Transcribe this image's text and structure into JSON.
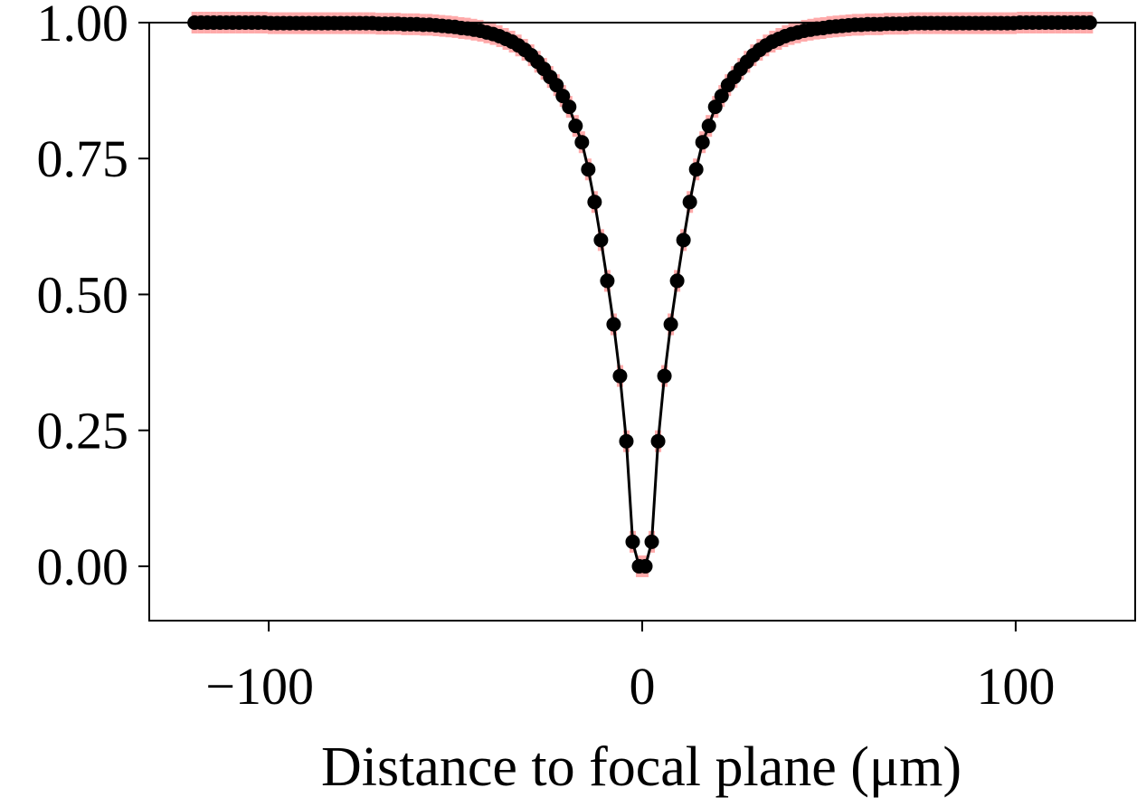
{
  "chart_data": {
    "type": "line",
    "x_label": "Distance to focal plane (μm)",
    "xlim": [
      -132,
      132
    ],
    "ylim": [
      -0.1,
      1.0
    ],
    "xticks": [
      {
        "value": -100,
        "label": "−100"
      },
      0,
      100
    ],
    "yticks": [
      {
        "value": 0,
        "label": "0.00"
      },
      {
        "value": 0.25,
        "label": "0.25"
      },
      {
        "value": 0.5,
        "label": "0.50"
      },
      {
        "value": 0.75,
        "label": "0.75"
      },
      {
        "value": 1,
        "label": "1.00"
      }
    ],
    "x": [
      -119.85,
      -118.15,
      -116.45,
      -114.75,
      -113.05,
      -111.35,
      -109.65,
      -107.95,
      -106.25,
      -104.55,
      -102.85,
      -101.15,
      -99.45,
      -97.75,
      -96.05,
      -94.35,
      -92.65,
      -90.95,
      -89.25,
      -87.55,
      -85.85,
      -84.15,
      -82.45,
      -80.75,
      -79.05,
      -77.35,
      -75.65,
      -73.95,
      -72.25,
      -70.55,
      -68.85,
      -67.15,
      -65.45,
      -63.75,
      -62.05,
      -60.35,
      -58.65,
      -56.95,
      -55.25,
      -53.55,
      -51.85,
      -50.15,
      -48.45,
      -46.75,
      -45.05,
      -43.35,
      -41.65,
      -39.95,
      -38.25,
      -36.55,
      -34.85,
      -33.15,
      -31.45,
      -29.75,
      -28.05,
      -26.35,
      -24.65,
      -22.95,
      -21.25,
      -19.55,
      -17.85,
      -16.15,
      -14.45,
      -12.75,
      -11.05,
      -9.35,
      -7.65,
      -5.95,
      -4.25,
      -2.55,
      -0.85,
      0.85,
      2.55,
      4.25,
      5.95,
      7.65,
      9.35,
      11.05,
      12.75,
      14.45,
      16.15,
      17.85,
      19.55,
      21.25,
      22.95,
      24.65,
      26.35,
      28.05,
      29.75,
      31.45,
      33.15,
      34.85,
      36.55,
      38.25,
      39.95,
      41.65,
      43.35,
      45.05,
      46.75,
      48.45,
      50.15,
      51.85,
      53.55,
      55.25,
      56.95,
      58.65,
      60.35,
      62.05,
      63.75,
      65.45,
      67.15,
      68.85,
      70.55,
      72.25,
      73.95,
      75.65,
      77.35,
      79.05,
      80.75,
      82.45,
      84.15,
      85.85,
      87.55,
      89.25,
      90.95,
      92.65,
      94.35,
      96.05,
      97.75,
      99.45,
      101.15,
      102.85,
      104.55,
      106.25,
      107.95,
      109.65,
      111.35,
      113.05,
      114.75,
      116.45,
      118.15,
      119.85
    ],
    "series": [
      {
        "color": "#000000",
        "band_color": "#ffaaaa",
        "error": 0.02,
        "values": [
          1,
          1,
          1,
          1,
          1,
          1,
          1,
          1,
          1,
          1,
          1,
          1,
          0.999,
          0.999,
          0.999,
          0.999,
          0.999,
          0.999,
          0.999,
          0.999,
          0.999,
          0.999,
          0.999,
          0.999,
          0.999,
          0.999,
          0.999,
          0.999,
          0.999,
          0.998,
          0.998,
          0.998,
          0.998,
          0.997,
          0.997,
          0.997,
          0.996,
          0.996,
          0.995,
          0.994,
          0.993,
          0.992,
          0.99,
          0.989,
          0.987,
          0.985,
          0.982,
          0.979,
          0.975,
          0.97,
          0.965,
          0.958,
          0.95,
          0.94,
          0.928,
          0.915,
          0.9,
          0.885,
          0.865,
          0.845,
          0.81,
          0.78,
          0.73,
          0.67,
          0.6,
          0.525,
          0.445,
          0.35,
          0.23,
          0.045,
          0,
          0,
          0.045,
          0.23,
          0.35,
          0.445,
          0.525,
          0.6,
          0.67,
          0.73,
          0.78,
          0.81,
          0.845,
          0.865,
          0.885,
          0.9,
          0.915,
          0.928,
          0.94,
          0.95,
          0.958,
          0.965,
          0.97,
          0.975,
          0.979,
          0.982,
          0.985,
          0.987,
          0.989,
          0.99,
          0.992,
          0.993,
          0.994,
          0.995,
          0.996,
          0.996,
          0.997,
          0.997,
          0.997,
          0.998,
          0.998,
          0.998,
          0.998,
          0.999,
          0.999,
          0.999,
          0.999,
          0.999,
          0.999,
          0.999,
          0.999,
          0.999,
          0.999,
          0.999,
          0.999,
          0.999,
          0.999,
          0.999,
          0.999,
          0.999,
          1,
          1,
          1,
          1,
          1,
          1,
          1,
          1,
          1,
          1,
          1,
          1
        ]
      }
    ]
  }
}
